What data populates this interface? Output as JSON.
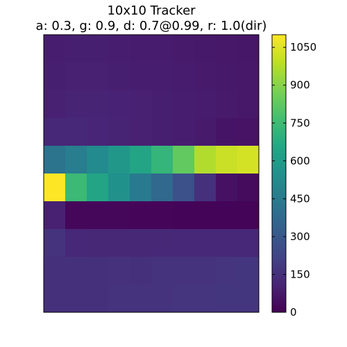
{
  "chart_data": {
    "type": "heatmap",
    "title": "10x10 Tracker",
    "subtitle": "a: 0.3, g: 0.9, d: 0.7@0.99, r: 1.0(dir)",
    "rows": 10,
    "cols": 10,
    "values": [
      [
        90,
        95,
        95,
        90,
        85,
        85,
        80,
        75,
        70,
        65
      ],
      [
        95,
        100,
        100,
        95,
        90,
        90,
        85,
        80,
        75,
        70
      ],
      [
        100,
        110,
        110,
        105,
        100,
        95,
        90,
        85,
        80,
        70
      ],
      [
        120,
        120,
        115,
        110,
        100,
        95,
        90,
        80,
        60,
        55
      ],
      [
        420,
        460,
        520,
        580,
        640,
        720,
        830,
        970,
        1010,
        1030
      ],
      [
        1100,
        740,
        640,
        550,
        450,
        370,
        270,
        150,
        50,
        30
      ],
      [
        100,
        20,
        20,
        20,
        15,
        15,
        10,
        10,
        10,
        10
      ],
      [
        160,
        120,
        125,
        125,
        125,
        125,
        120,
        120,
        120,
        120
      ],
      [
        150,
        150,
        150,
        155,
        150,
        160,
        160,
        160,
        165,
        170
      ],
      [
        150,
        150,
        150,
        160,
        160,
        160,
        165,
        165,
        170,
        170
      ]
    ],
    "colorbar": {
      "min": 0,
      "max": 1100,
      "ticks": [
        0,
        150,
        300,
        450,
        600,
        750,
        900,
        1050
      ],
      "colormap": "viridis"
    },
    "grid": false
  }
}
